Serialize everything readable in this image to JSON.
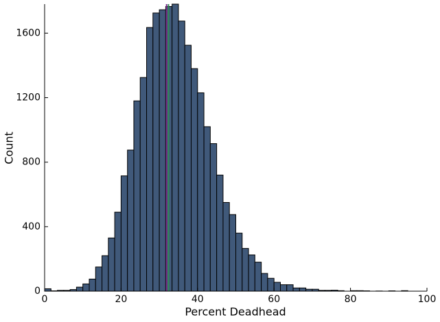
{
  "chart_data": {
    "type": "histogram",
    "x_label": "Percent Deadhead",
    "y_label": "Count",
    "bins": [
      0,
      1.67,
      3.33,
      5,
      6.67,
      8.33,
      10,
      11.67,
      13.33,
      15,
      16.67,
      18.33,
      20,
      21.67,
      23.33,
      25,
      26.67,
      28.33,
      30,
      31.67,
      33.33,
      35,
      36.67,
      38.33,
      40,
      41.67,
      43.33,
      45,
      46.67,
      48.33,
      50,
      51.67,
      53.33,
      55,
      56.67,
      58.33,
      60,
      61.67,
      63.33,
      65,
      66.67,
      68.33,
      70,
      71.67,
      73.33,
      75,
      76.67,
      78.33,
      80,
      81.67,
      83.33,
      85,
      86.67,
      88.33,
      90,
      91.67,
      93.33,
      95,
      96.67,
      98.33,
      100
    ],
    "values": [
      15,
      2,
      5,
      5,
      10,
      25,
      45,
      75,
      150,
      220,
      330,
      490,
      715,
      875,
      1180,
      1325,
      1635,
      1725,
      1745,
      1765,
      1780,
      1675,
      1525,
      1380,
      1230,
      1020,
      915,
      720,
      550,
      475,
      360,
      265,
      225,
      180,
      110,
      80,
      55,
      40,
      40,
      20,
      20,
      12,
      12,
      5,
      5,
      6,
      3,
      0,
      3,
      3,
      2,
      0,
      1,
      0,
      2,
      0,
      3,
      0,
      0,
      0
    ],
    "color": "#40597a",
    "edge_color": "#000000",
    "vlines": [
      {
        "value": 31.9,
        "color": "#7b2d8b"
      },
      {
        "value": 32.4,
        "color": "#2e8b57"
      }
    ],
    "xlim": [
      0,
      100
    ],
    "xticks": [
      0,
      20,
      40,
      60,
      80,
      100
    ],
    "ylim": [
      0,
      1780
    ],
    "yticks": [
      0,
      400,
      800,
      1200,
      1600
    ]
  }
}
